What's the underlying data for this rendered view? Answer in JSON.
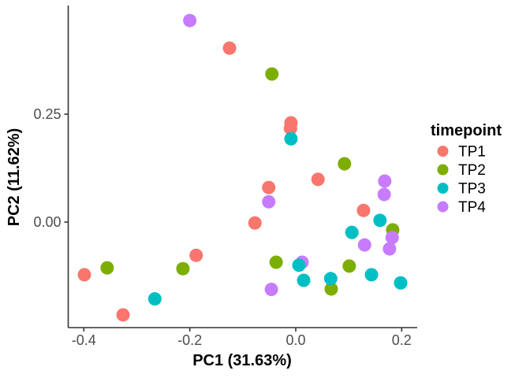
{
  "chart_data": {
    "type": "scatter",
    "title": "",
    "xlabel": "PC1 (31.63%)",
    "ylabel": "PC2 (11.62%)",
    "xlim": [
      -0.4295,
      0.2293
    ],
    "ylim": [
      -0.2445,
      0.5018
    ],
    "x_ticks": [
      -0.4,
      -0.2,
      0.0,
      0.2
    ],
    "x_tick_labels": [
      "-0.4",
      "-0.2",
      "0.0",
      "0.2"
    ],
    "y_ticks": [
      0.0,
      0.25
    ],
    "y_tick_labels": [
      "0.00",
      "0.25"
    ],
    "grid": false,
    "legend": {
      "title": "timepoint",
      "position": "right",
      "entries": [
        "TP1",
        "TP2",
        "TP3",
        "TP4"
      ]
    },
    "point_radius": 8.5,
    "axis_color": "#333333",
    "tick_label_color": "#4d4d4d",
    "draw_order": [
      "TP1",
      "TP2",
      "TP4",
      "TP3"
    ],
    "series": [
      {
        "name": "TP1",
        "color": "#F8766D",
        "points": [
          [
            -0.125,
            0.403
          ],
          [
            -0.009,
            0.23
          ],
          [
            -0.01,
            0.217
          ],
          [
            -0.051,
            0.08
          ],
          [
            0.042,
            0.099
          ],
          [
            -0.077,
            -0.002
          ],
          [
            0.128,
            0.027
          ],
          [
            -0.188,
            -0.077
          ],
          [
            -0.399,
            -0.122
          ],
          [
            -0.326,
            -0.215
          ]
        ]
      },
      {
        "name": "TP2",
        "color": "#7CAE00",
        "points": [
          [
            -0.045,
            0.343
          ],
          [
            0.092,
            0.135
          ],
          [
            0.183,
            -0.018
          ],
          [
            -0.356,
            -0.106
          ],
          [
            -0.213,
            -0.108
          ],
          [
            -0.037,
            -0.093
          ],
          [
            0.101,
            -0.102
          ],
          [
            0.067,
            -0.155
          ]
        ]
      },
      {
        "name": "TP3",
        "color": "#00BFC4",
        "points": [
          [
            -0.009,
            0.193
          ],
          [
            0.159,
            0.004
          ],
          [
            0.106,
            -0.024
          ],
          [
            0.006,
            -0.1
          ],
          [
            0.015,
            -0.135
          ],
          [
            0.066,
            -0.131
          ],
          [
            0.143,
            -0.122
          ],
          [
            0.198,
            -0.141
          ],
          [
            -0.266,
            -0.178
          ]
        ]
      },
      {
        "name": "TP4",
        "color": "#C77CFF",
        "points": [
          [
            -0.2,
            0.467
          ],
          [
            0.168,
            0.095
          ],
          [
            0.167,
            0.064
          ],
          [
            -0.051,
            0.047
          ],
          [
            0.182,
            -0.036
          ],
          [
            0.13,
            -0.053
          ],
          [
            0.177,
            -0.062
          ],
          [
            0.012,
            -0.093
          ],
          [
            -0.046,
            -0.156
          ]
        ]
      }
    ]
  }
}
